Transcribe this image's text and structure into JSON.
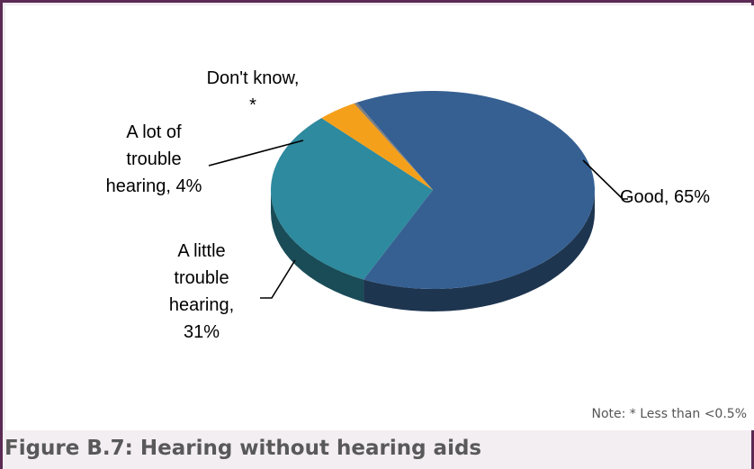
{
  "chart_data": {
    "type": "pie",
    "title": "",
    "slices": [
      {
        "name": "Good",
        "value": 65,
        "label": "Good, 65%",
        "color": "#366092"
      },
      {
        "name": "A little trouble hearing",
        "value": 31,
        "label": "A little trouble hearing, 31%",
        "color": "#2e8a9e"
      },
      {
        "name": "A lot of trouble hearing",
        "value": 4,
        "label": "A lot of trouble hearing, 4%",
        "color": "#f5a01a"
      },
      {
        "name": "Don't know",
        "value": 0.3,
        "label": "Don't know, *",
        "color": "#7f7f7f"
      }
    ],
    "labels": {
      "good": "Good, 65%",
      "little_line1": "A little",
      "little_line2": "trouble",
      "little_line3": "hearing,",
      "little_line4": "31%",
      "lot_line1": "A lot of",
      "lot_line2": "trouble",
      "lot_line3": "hearing, 4%",
      "dk_line1": "Don't know,",
      "dk_line2": "*"
    },
    "note": "Note: * Less than <0.5%"
  },
  "caption": "Figure B.7: Hearing without hearing aids"
}
